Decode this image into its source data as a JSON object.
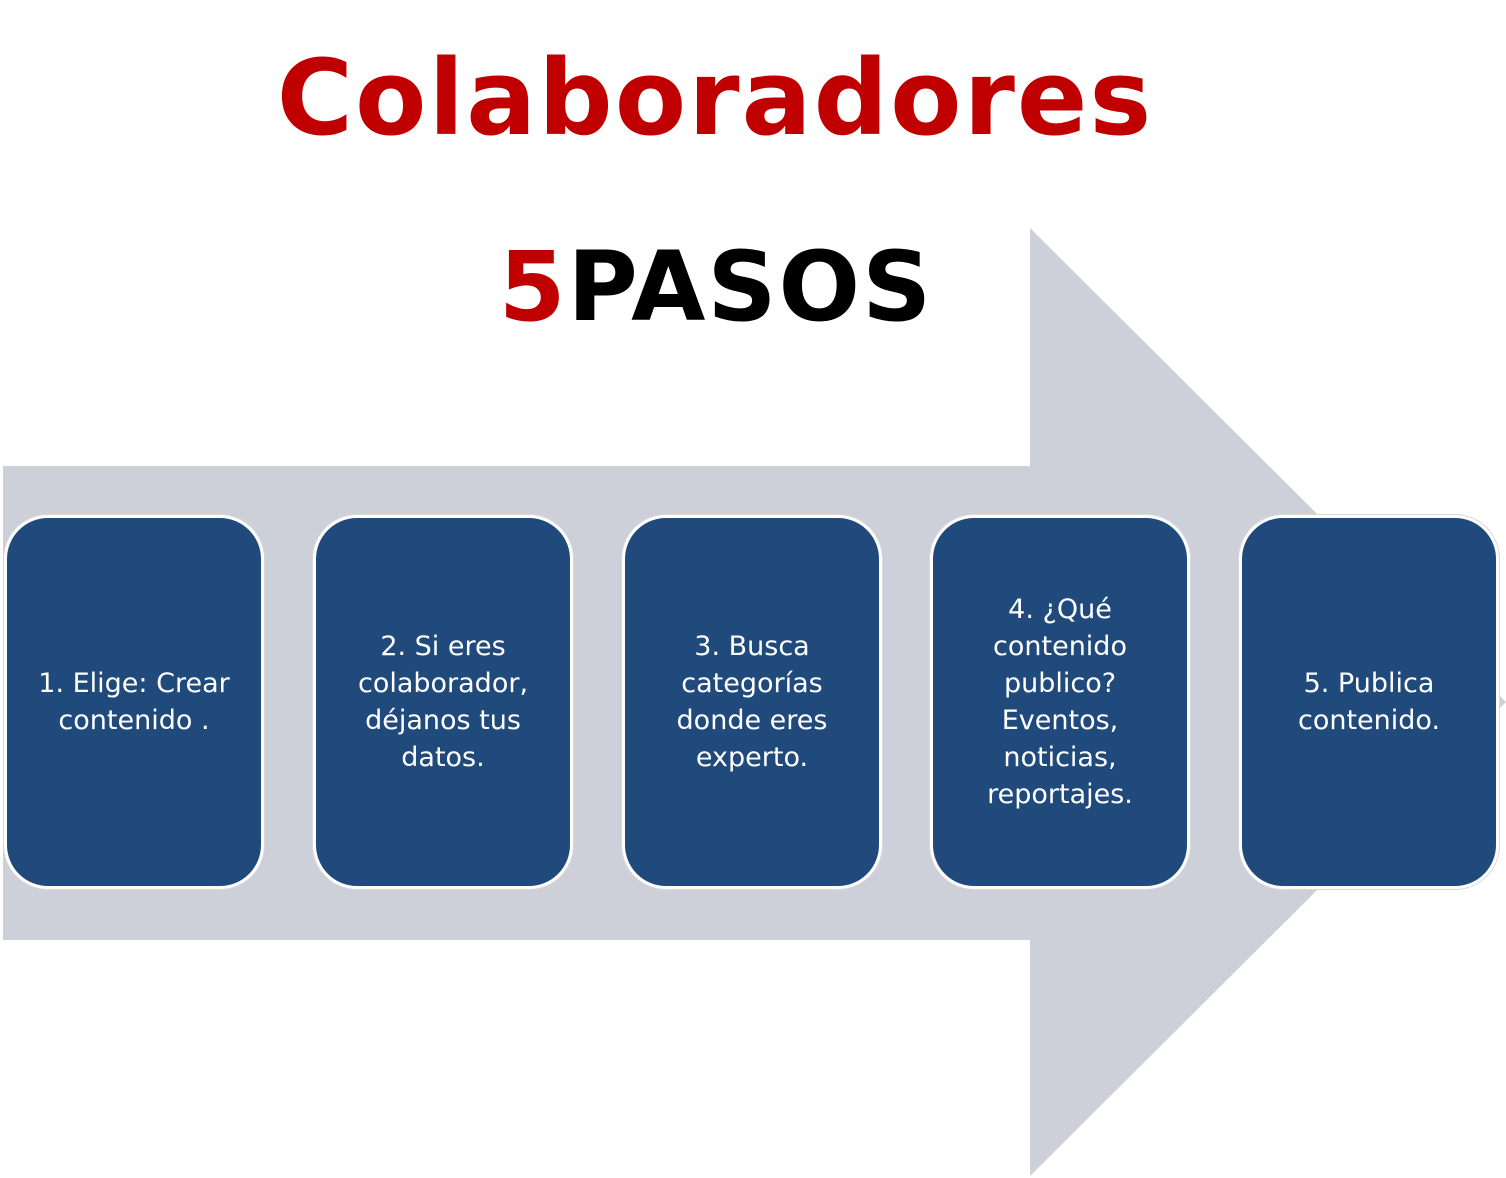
{
  "title": "Colaboradores",
  "subtitle": {
    "number": "5",
    "word": "PASOS"
  },
  "steps": [
    {
      "text": "1. Elige: Crear\ncontenido ."
    },
    {
      "text": "2. Si eres\ncolaborador,\ndéjanos tus\ndatos."
    },
    {
      "text": "3. Busca\ncategorías\ndonde eres\nexperto."
    },
    {
      "text": "4. ¿Qué\ncontenido\npublico?\nEventos,\nnoticias,\nreportajes."
    },
    {
      "text": "5. Publica\ncontenido."
    }
  ],
  "colors": {
    "title": "#c00000",
    "subtitle_word": "#000000",
    "arrow": "#cdd0d8",
    "step_fill": "#214a7c",
    "step_text": "#ffffff"
  }
}
